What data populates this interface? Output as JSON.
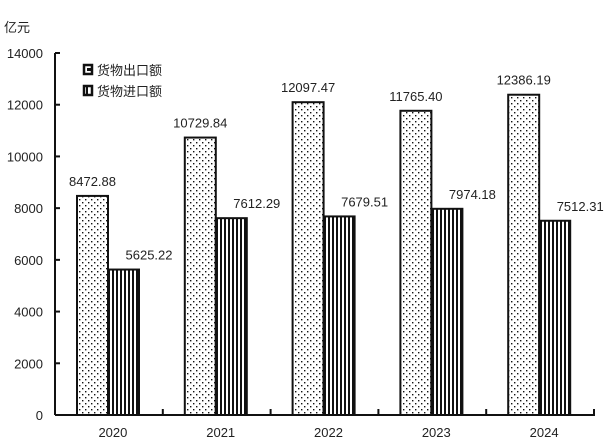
{
  "chart_data": {
    "type": "bar",
    "title": "",
    "unit_label": "亿元",
    "xlabel": "",
    "ylabel": "亿元",
    "ylim": [
      0,
      14000
    ],
    "yticks": [
      0,
      2000,
      4000,
      6000,
      8000,
      10000,
      12000,
      14000
    ],
    "grid": false,
    "legend_position": "top-left inside",
    "categories": [
      "2020",
      "2021",
      "2022",
      "2023",
      "2024"
    ],
    "series": [
      {
        "name": "货物出口额",
        "pattern": "dots",
        "values": [
          8472.88,
          10729.84,
          12097.47,
          11765.4,
          12386.19
        ],
        "labels": [
          "8472.88",
          "10729.84",
          "12097.47",
          "11765.40",
          "12386.19"
        ]
      },
      {
        "name": "货物进口额",
        "pattern": "vertical-stripes",
        "values": [
          5625.22,
          7612.29,
          7679.51,
          7974.18,
          7512.31
        ],
        "labels": [
          "5625.22",
          "7612.29",
          "7679.51",
          "7974.18",
          "7512.31"
        ]
      }
    ]
  }
}
